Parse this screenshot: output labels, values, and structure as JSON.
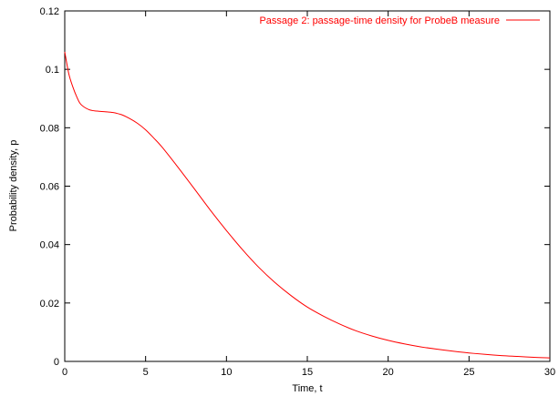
{
  "chart_data": {
    "type": "line",
    "title": "",
    "xlabel": "Time, t",
    "ylabel": "Probability density, p",
    "xlim": [
      0,
      30
    ],
    "ylim": [
      0,
      0.12
    ],
    "xticks": [
      0,
      5,
      10,
      15,
      20,
      25,
      30
    ],
    "xtick_labels": [
      "0",
      "5",
      "10",
      "15",
      "20",
      "25",
      "30"
    ],
    "yticks": [
      0,
      0.02,
      0.04,
      0.06,
      0.08,
      0.1,
      0.12
    ],
    "ytick_labels": [
      "0",
      "0.02",
      "0.04",
      "0.06",
      "0.08",
      "0.1",
      "0.12"
    ],
    "grid": false,
    "legend_position": "top-right",
    "series": [
      {
        "name": "Passage 2: passage-time density for ProbeB measure",
        "color": "#ff0000",
        "x": [
          0,
          0.25,
          0.5,
          0.75,
          1,
          1.5,
          2,
          2.5,
          3,
          3.5,
          4,
          4.5,
          5,
          5.5,
          6,
          7,
          8,
          9,
          10,
          11,
          12,
          13,
          14,
          15,
          16,
          17,
          18,
          19,
          20,
          21,
          22,
          23,
          24,
          25,
          26,
          27,
          28,
          29,
          30
        ],
        "y": [
          0.106,
          0.0985,
          0.094,
          0.0905,
          0.088,
          0.0862,
          0.0857,
          0.0855,
          0.0852,
          0.0845,
          0.0832,
          0.0815,
          0.0793,
          0.0765,
          0.0735,
          0.0665,
          0.0592,
          0.0518,
          0.0448,
          0.0382,
          0.0322,
          0.027,
          0.0225,
          0.0186,
          0.0155,
          0.0128,
          0.0105,
          0.0087,
          0.0072,
          0.006,
          0.005,
          0.0042,
          0.0035,
          0.0029,
          0.0024,
          0.002,
          0.0017,
          0.0014,
          0.0012
        ]
      }
    ]
  }
}
